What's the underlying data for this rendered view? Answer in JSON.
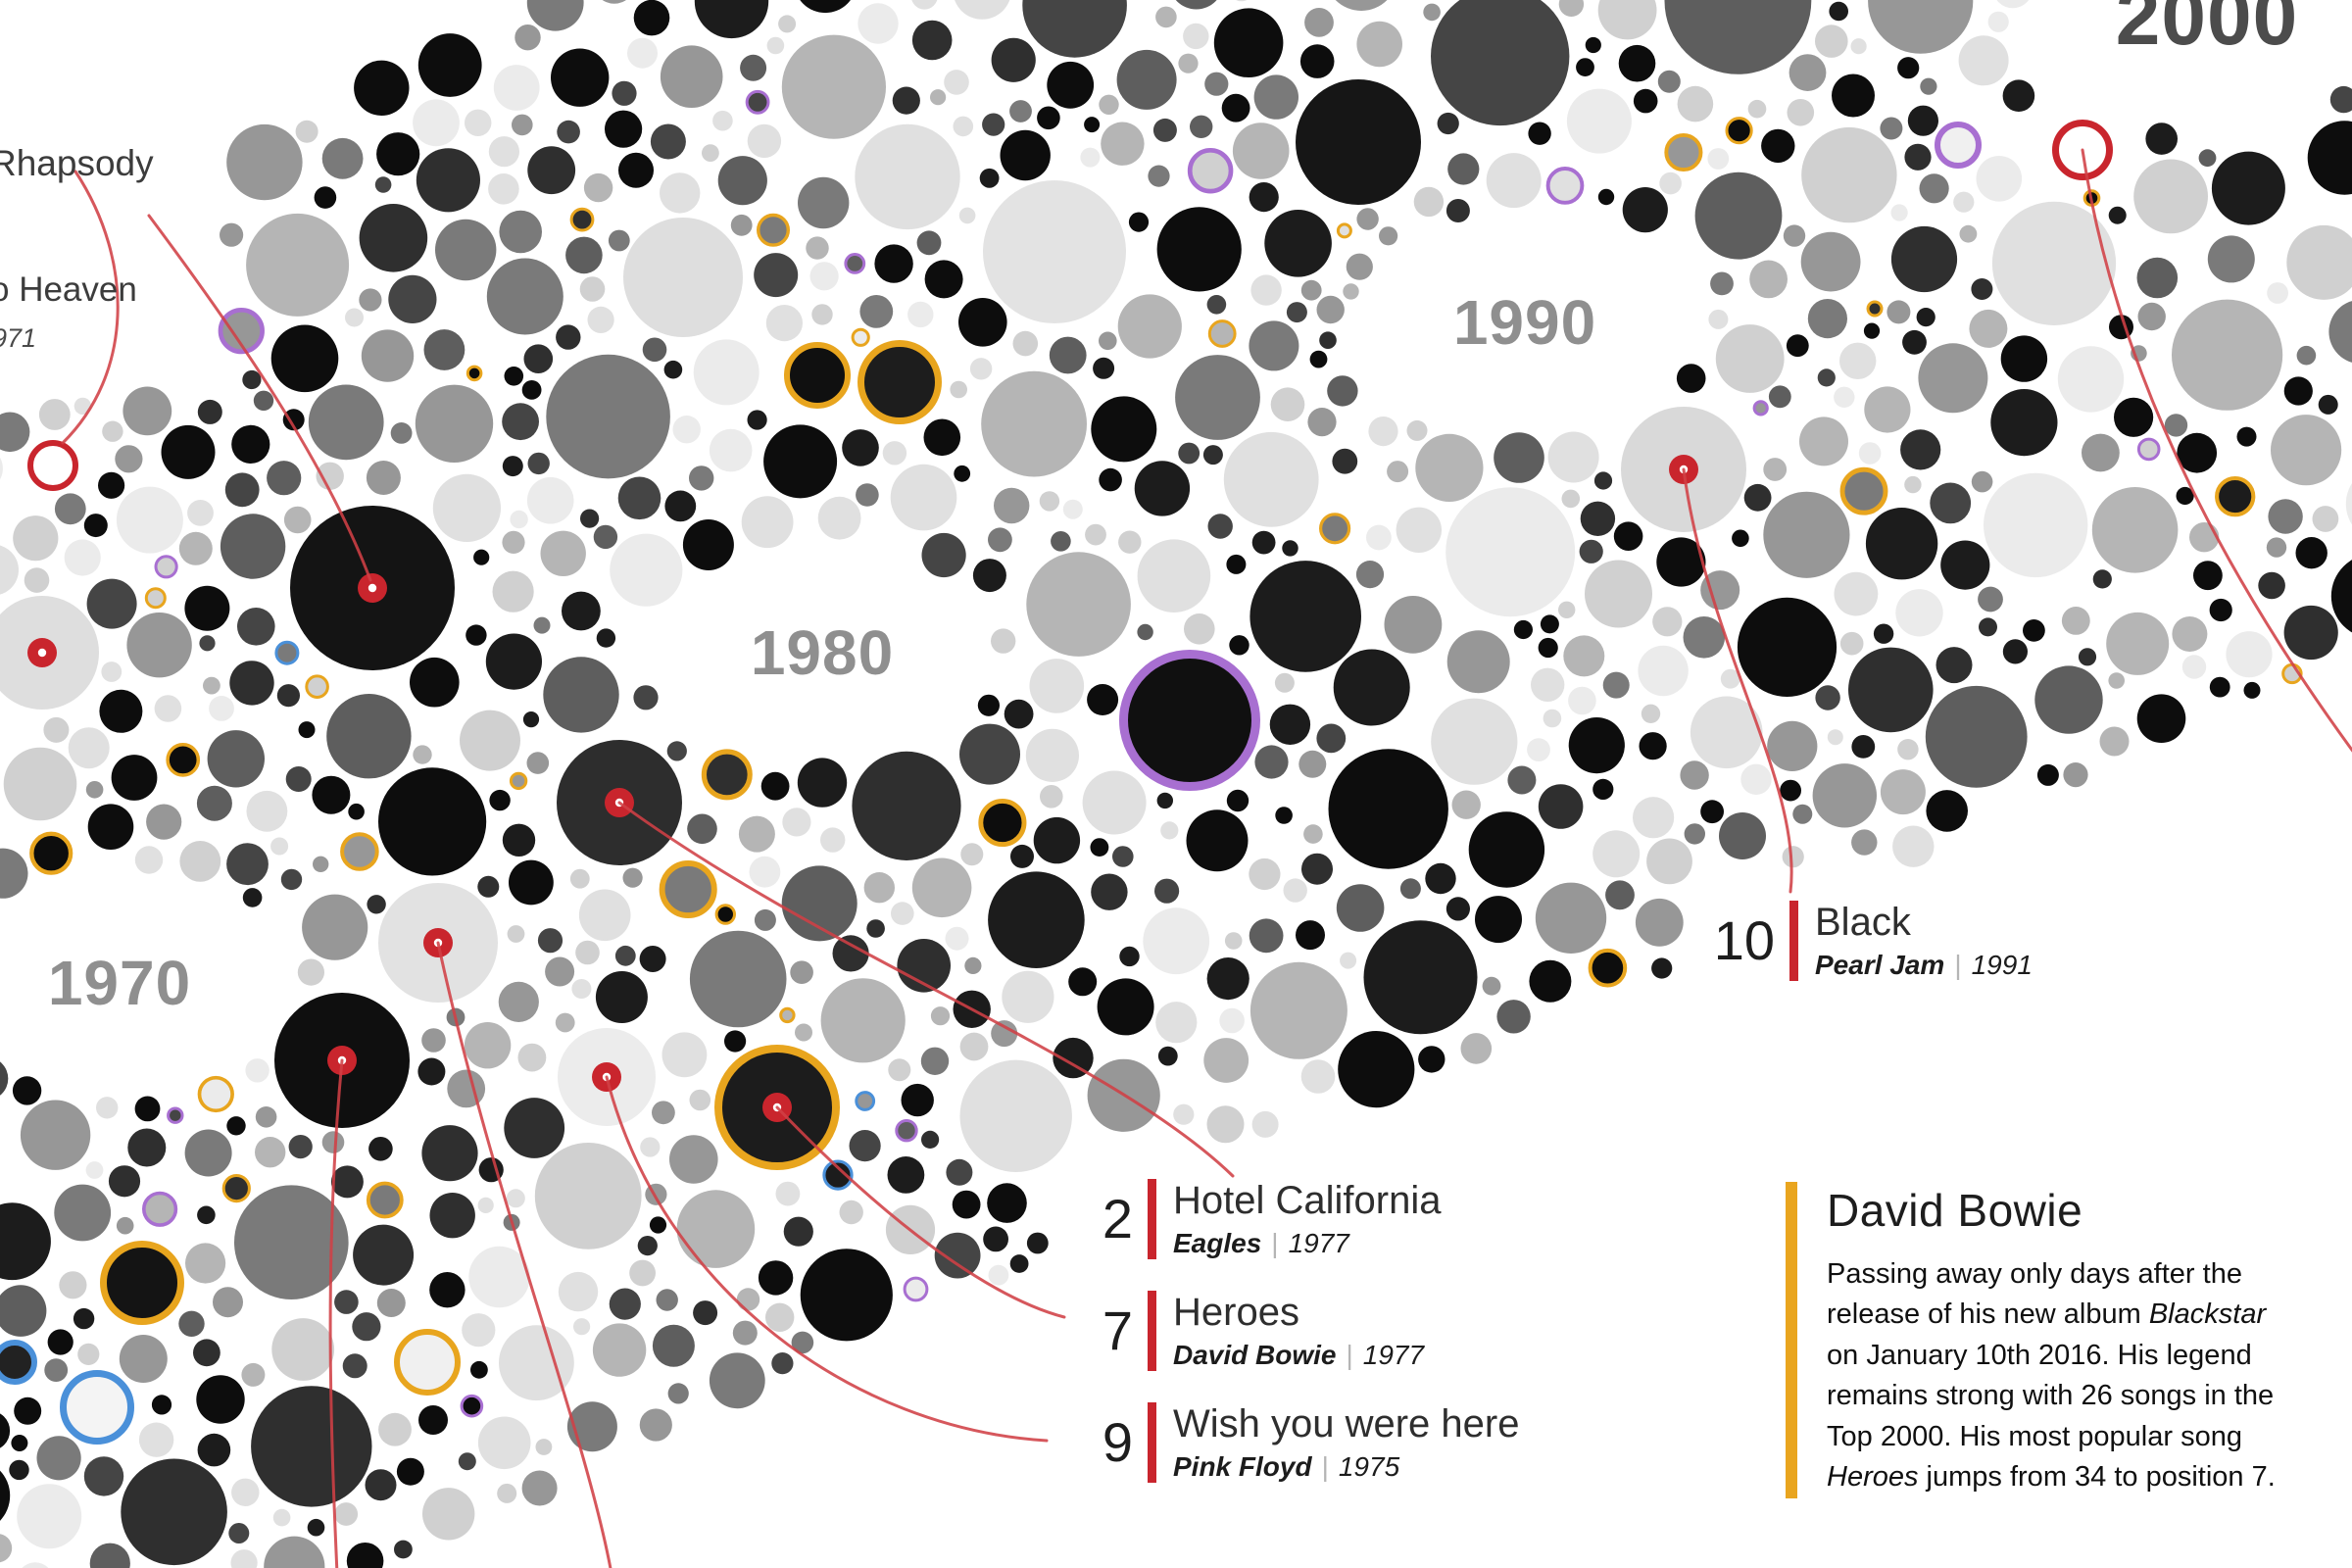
{
  "fragments": {
    "rhapsody": "Rhapsody",
    "heaven": "o Heaven",
    "heaven_year": "971"
  },
  "separator": "|",
  "story": {
    "title": "David Bowie",
    "segments": [
      {
        "text": "Passing away only days after the release of his new album ",
        "italic": false
      },
      {
        "text": "Blackstar",
        "italic": true
      },
      {
        "text": " on January 10th 2016. His legend remains strong with 26 songs in the Top 2000. His most popular song ",
        "italic": false
      },
      {
        "text": "Heroes",
        "italic": true
      },
      {
        "text": " jumps from 34 to position 7.",
        "italic": false
      }
    ]
  },
  "chart_data": {
    "type": "bubble",
    "description": "Diagonal packed-bubble timeline of Top 2000 songs grouped by decade; each circle is a song, red-dot circles are annotated hits connected with red curved lines",
    "decades": [
      {
        "label": "1970"
      },
      {
        "label": "1980"
      },
      {
        "label": "1990"
      },
      {
        "label": "2000"
      }
    ],
    "annotations": [
      {
        "rank": "2",
        "title": "Hotel California",
        "artist": "Eagles",
        "year": "1977"
      },
      {
        "rank": "7",
        "title": "Heroes",
        "artist": "David Bowie",
        "year": "1977"
      },
      {
        "rank": "9",
        "title": "Wish you were here",
        "artist": "Pink Floyd",
        "year": "1975"
      },
      {
        "rank": "10",
        "title": "Black",
        "artist": "Pearl Jam",
        "year": "1991"
      }
    ],
    "partial_annotations": [
      {
        "title_fragment": "Rhapsody"
      },
      {
        "title_fragment": "o Heaven",
        "year_fragment": "971"
      }
    ],
    "colors": {
      "marker_red": "#c9252d",
      "ring_orange": "#e8a51e",
      "ring_purple": "#a86fd1",
      "ring_blue": "#4a90d9",
      "story_bar": "#e9a51f",
      "connector_line": "#d04046"
    }
  }
}
